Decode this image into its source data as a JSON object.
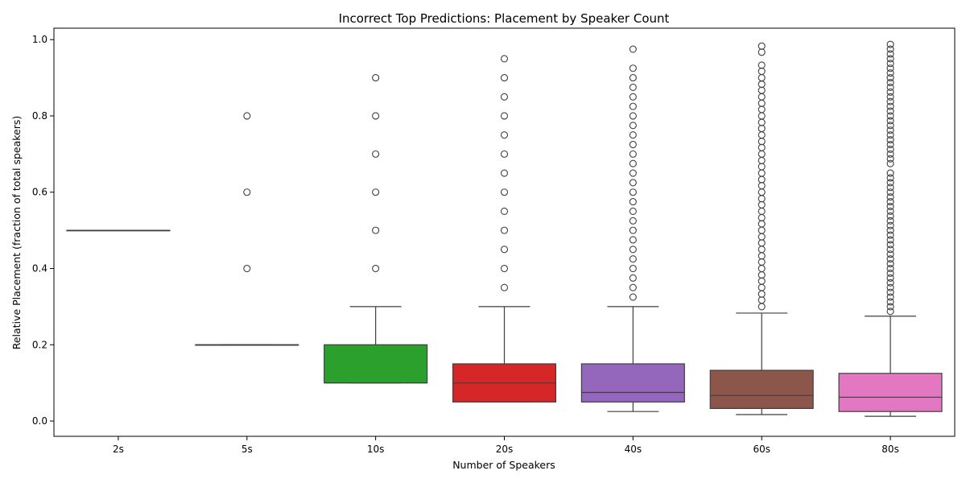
{
  "chart_data": {
    "type": "box",
    "title": "Incorrect Top Predictions: Placement by Speaker Count",
    "xlabel": "Number of Speakers",
    "ylabel": "Relative Placement (fraction of total speakers)",
    "ylim": [
      -0.04,
      1.03
    ],
    "yticks": [
      "0.0",
      "0.2",
      "0.4",
      "0.6",
      "0.8",
      "1.0"
    ],
    "grid": false,
    "categories": [
      "2s",
      "5s",
      "10s",
      "20s",
      "40s",
      "60s",
      "80s"
    ],
    "boxes": [
      {
        "category": "2s",
        "color": "#1f77b4",
        "whisker_low": 0.5,
        "q1": 0.5,
        "median": 0.5,
        "q3": 0.5,
        "whisker_high": 0.5,
        "outliers": []
      },
      {
        "category": "5s",
        "color": "#ff7f0e",
        "whisker_low": 0.2,
        "q1": 0.2,
        "median": 0.2,
        "q3": 0.2,
        "whisker_high": 0.2,
        "outliers": [
          0.4,
          0.6,
          0.8
        ]
      },
      {
        "category": "10s",
        "color": "#2ca02c",
        "whisker_low": 0.1,
        "q1": 0.1,
        "median": 0.1,
        "q3": 0.2,
        "whisker_high": 0.3,
        "outliers": [
          0.4,
          0.5,
          0.6,
          0.7,
          0.8,
          0.9
        ]
      },
      {
        "category": "20s",
        "color": "#d62728",
        "whisker_low": 0.05,
        "q1": 0.05,
        "median": 0.1,
        "q3": 0.15,
        "whisker_high": 0.3,
        "outliers": [
          0.35,
          0.4,
          0.45,
          0.5,
          0.55,
          0.6,
          0.65,
          0.7,
          0.75,
          0.8,
          0.85,
          0.9,
          0.95
        ]
      },
      {
        "category": "40s",
        "color": "#9467bd",
        "whisker_low": 0.025,
        "q1": 0.05,
        "median": 0.075,
        "q3": 0.15,
        "whisker_high": 0.3,
        "outliers": [
          0.325,
          0.35,
          0.375,
          0.4,
          0.425,
          0.45,
          0.475,
          0.5,
          0.525,
          0.55,
          0.575,
          0.6,
          0.625,
          0.65,
          0.675,
          0.7,
          0.725,
          0.75,
          0.775,
          0.8,
          0.825,
          0.85,
          0.875,
          0.9,
          0.925,
          0.975
        ]
      },
      {
        "category": "60s",
        "color": "#8c564b",
        "whisker_low": 0.017,
        "q1": 0.033,
        "median": 0.067,
        "q3": 0.133,
        "whisker_high": 0.283,
        "outliers": [
          0.3,
          0.317,
          0.333,
          0.35,
          0.367,
          0.383,
          0.4,
          0.417,
          0.433,
          0.45,
          0.467,
          0.483,
          0.5,
          0.517,
          0.533,
          0.55,
          0.567,
          0.583,
          0.6,
          0.617,
          0.633,
          0.65,
          0.667,
          0.683,
          0.7,
          0.717,
          0.733,
          0.75,
          0.767,
          0.783,
          0.8,
          0.817,
          0.833,
          0.85,
          0.867,
          0.883,
          0.9,
          0.917,
          0.933,
          0.967,
          0.983
        ]
      },
      {
        "category": "80s",
        "color": "#e377c2",
        "whisker_low": 0.0125,
        "q1": 0.025,
        "median": 0.0625,
        "q3": 0.125,
        "whisker_high": 0.275,
        "outliers": [
          0.2875,
          0.3,
          0.3125,
          0.325,
          0.3375,
          0.35,
          0.3625,
          0.375,
          0.3875,
          0.4,
          0.4125,
          0.425,
          0.4375,
          0.45,
          0.4625,
          0.475,
          0.4875,
          0.5,
          0.5125,
          0.525,
          0.5375,
          0.55,
          0.5625,
          0.575,
          0.5875,
          0.6,
          0.6125,
          0.625,
          0.6375,
          0.65,
          0.675,
          0.6875,
          0.7,
          0.7125,
          0.725,
          0.7375,
          0.75,
          0.7625,
          0.775,
          0.7875,
          0.8,
          0.8125,
          0.825,
          0.8375,
          0.85,
          0.8625,
          0.875,
          0.8875,
          0.9,
          0.9125,
          0.925,
          0.9375,
          0.95,
          0.9625,
          0.975,
          0.9875
        ]
      }
    ]
  }
}
